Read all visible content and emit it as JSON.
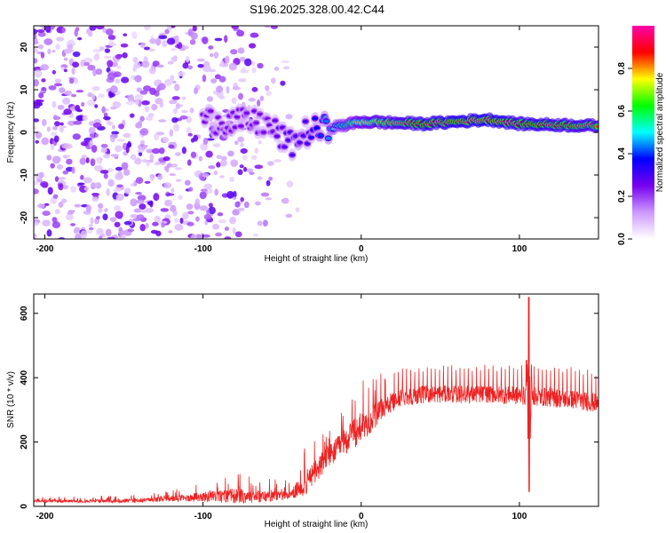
{
  "title": "S196.2025.328.00.42.C44",
  "colors": {
    "snr_line": "#ee2222",
    "axes": "#000000",
    "background": "#ffffff"
  },
  "chart_data": [
    {
      "type": "heatmap",
      "name": "spectrogram",
      "xlabel": "Height of straight line (km)",
      "ylabel": "Frequency (Hz)",
      "xlim": [
        -207,
        150
      ],
      "ylim": [
        -25,
        25
      ],
      "xticks": [
        -200,
        -100,
        0,
        100
      ],
      "yticks": [
        -20,
        -10,
        0,
        10,
        20
      ],
      "colorbar": {
        "label": "Normalized spectral amplitude",
        "range": [
          0,
          1
        ],
        "ticks": [
          0.0,
          0.2,
          0.4,
          0.6,
          0.8
        ],
        "tick_labels": [
          "0.0",
          "0.2",
          "0.4",
          "0.6",
          "0.8"
        ],
        "colormap": [
          "#ffffff",
          "#cc99ff",
          "#7700ee",
          "#0000ff",
          "#00ffff",
          "#00ff00",
          "#ffff00",
          "#ff0000",
          "#ff00aa"
        ]
      },
      "ridge": {
        "description": "narrow high-amplitude tone",
        "points": [
          {
            "x": -100,
            "y": 3,
            "v": 0.25
          },
          {
            "x": -60,
            "y": 2,
            "v": 0.25
          },
          {
            "x": -45,
            "y": -3,
            "v": 0.3
          },
          {
            "x": -35,
            "y": 0,
            "v": 0.3
          },
          {
            "x": -20,
            "y": 1,
            "v": 0.45
          },
          {
            "x": 0,
            "y": 2.5,
            "v": 0.75
          },
          {
            "x": 40,
            "y": 2,
            "v": 0.9
          },
          {
            "x": 80,
            "y": 3,
            "v": 0.95
          },
          {
            "x": 100,
            "y": 2,
            "v": 0.9
          },
          {
            "x": 150,
            "y": 1.5,
            "v": 0.85
          }
        ]
      },
      "noise_region": {
        "x_range": [
          -207,
          -40
        ],
        "y_range": [
          -25,
          25
        ],
        "typical_value": 0.15
      }
    },
    {
      "type": "line",
      "name": "snr",
      "xlabel": "Height of straight line (km)",
      "ylabel": "SNR (10 * v/v)",
      "xlim": [
        -207,
        150
      ],
      "ylim": [
        0,
        660
      ],
      "xticks": [
        -200,
        -100,
        0,
        100
      ],
      "yticks": [
        0,
        200,
        400,
        600
      ],
      "envelope": {
        "x": [
          -207,
          -180,
          -150,
          -120,
          -100,
          -80,
          -60,
          -45,
          -35,
          -25,
          -15,
          -5,
          5,
          15,
          25,
          40,
          60,
          80,
          100,
          120,
          140,
          150
        ],
        "base": [
          15,
          15,
          15,
          20,
          25,
          25,
          25,
          30,
          60,
          120,
          170,
          210,
          250,
          300,
          330,
          340,
          340,
          340,
          335,
          330,
          320,
          310
        ],
        "peak": [
          30,
          30,
          35,
          50,
          80,
          110,
          90,
          80,
          200,
          260,
          300,
          380,
          400,
          420,
          430,
          440,
          440,
          440,
          440,
          440,
          430,
          420
        ]
      },
      "spike": {
        "x": 106,
        "max": 650,
        "min": 45
      }
    }
  ]
}
